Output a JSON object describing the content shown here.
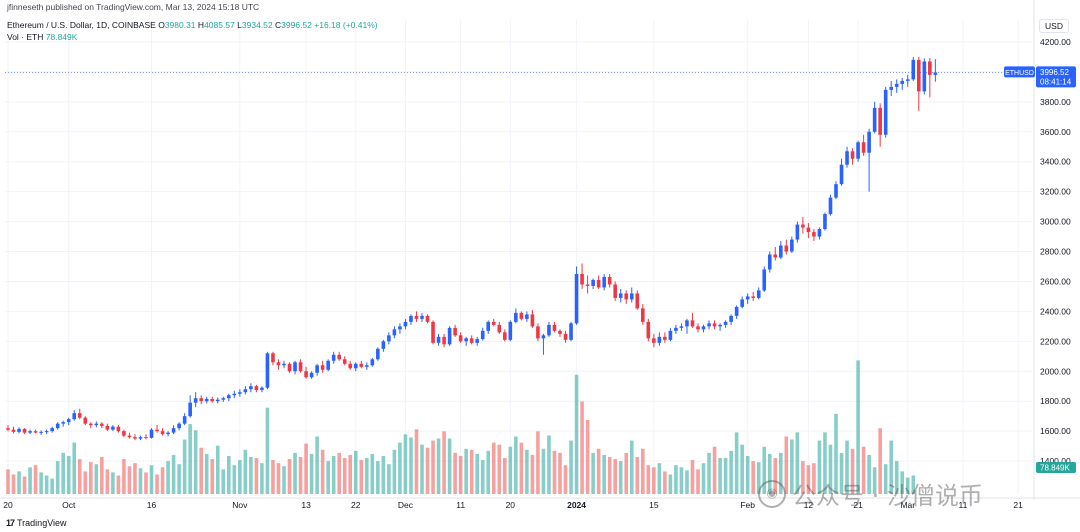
{
  "publisher": "jfinneseth published on TradingView.com, Mar 13, 2024 15:18 UTC",
  "legend": {
    "symbol": "Ethereum / U.S. Dollar, 1D, COINBASE",
    "o_label": "O",
    "o": "3980.31",
    "h_label": "H",
    "h": "4085.57",
    "l_label": "L",
    "l": "3934.52",
    "c_label": "C",
    "c": "3996.52",
    "change": "+16.18 (+0.41%)",
    "vol_label": "Vol · ETH",
    "vol": "78.849K"
  },
  "currency": "USD",
  "footer": "TradingView",
  "watermark": "公众号 · 沙僧说币",
  "colors": {
    "up": "#2962ff",
    "down": "#f23645",
    "vol_up": "#26a69a",
    "vol_down": "#ef5350"
  },
  "chart_data": {
    "type": "candlestick",
    "symbol_tag": "ETHUSD",
    "last_price": "3996.52",
    "countdown": "08:41:14",
    "volume_tag": "78.849K",
    "ylim": [
      1180,
      4280
    ],
    "y_ticks": [
      4200,
      4000,
      3800,
      3600,
      3400,
      3200,
      3000,
      2800,
      2600,
      2400,
      2200,
      2000,
      1800,
      1600,
      1400
    ],
    "y_tick_labels": [
      "4200.00",
      "4000.00",
      "3800.00",
      "3600.00",
      "3400.00",
      "3200.00",
      "3000.00",
      "2800.00",
      "2600.00",
      "2400.00",
      "2200.00",
      "2000.00",
      "1800.00",
      "1600.00",
      "1400.00"
    ],
    "x_ticks": [
      {
        "label": "20",
        "index": 0
      },
      {
        "label": "Oct",
        "index": 11
      },
      {
        "label": "16",
        "index": 26
      },
      {
        "label": "Nov",
        "index": 42
      },
      {
        "label": "13",
        "index": 54
      },
      {
        "label": "22",
        "index": 63
      },
      {
        "label": "Dec",
        "index": 72
      },
      {
        "label": "11",
        "index": 82
      },
      {
        "label": "20",
        "index": 91
      },
      {
        "label": "2024",
        "index": 103
      },
      {
        "label": "15",
        "index": 117
      },
      {
        "label": "Feb",
        "index": 134
      },
      {
        "label": "12",
        "index": 145
      },
      {
        "label": "21",
        "index": 154
      },
      {
        "label": "Mar",
        "index": 163
      },
      {
        "label": "11",
        "index": 173
      },
      {
        "label": "21",
        "index": 183
      }
    ],
    "ohlc": [
      [
        1620,
        1640,
        1600,
        1610
      ],
      [
        1610,
        1630,
        1585,
        1595
      ],
      [
        1595,
        1625,
        1585,
        1615
      ],
      [
        1615,
        1620,
        1580,
        1590
      ],
      [
        1590,
        1610,
        1580,
        1600
      ],
      [
        1600,
        1610,
        1585,
        1590
      ],
      [
        1590,
        1605,
        1575,
        1595
      ],
      [
        1595,
        1610,
        1580,
        1600
      ],
      [
        1600,
        1630,
        1590,
        1620
      ],
      [
        1620,
        1660,
        1610,
        1650
      ],
      [
        1650,
        1670,
        1630,
        1660
      ],
      [
        1660,
        1690,
        1640,
        1680
      ],
      [
        1680,
        1740,
        1670,
        1720
      ],
      [
        1720,
        1750,
        1680,
        1690
      ],
      [
        1690,
        1700,
        1640,
        1650
      ],
      [
        1650,
        1660,
        1620,
        1640
      ],
      [
        1640,
        1665,
        1625,
        1650
      ],
      [
        1650,
        1660,
        1620,
        1635
      ],
      [
        1635,
        1650,
        1600,
        1610
      ],
      [
        1610,
        1640,
        1600,
        1630
      ],
      [
        1630,
        1640,
        1590,
        1600
      ],
      [
        1600,
        1610,
        1560,
        1570
      ],
      [
        1570,
        1590,
        1550,
        1560
      ],
      [
        1560,
        1580,
        1540,
        1550
      ],
      [
        1550,
        1570,
        1540,
        1560
      ],
      [
        1560,
        1580,
        1545,
        1555
      ],
      [
        1555,
        1620,
        1550,
        1610
      ],
      [
        1610,
        1640,
        1590,
        1600
      ],
      [
        1600,
        1620,
        1570,
        1580
      ],
      [
        1580,
        1600,
        1565,
        1590
      ],
      [
        1590,
        1640,
        1580,
        1620
      ],
      [
        1620,
        1660,
        1605,
        1650
      ],
      [
        1650,
        1720,
        1640,
        1700
      ],
      [
        1700,
        1840,
        1690,
        1790
      ],
      [
        1790,
        1860,
        1760,
        1820
      ],
      [
        1820,
        1840,
        1780,
        1800
      ],
      [
        1800,
        1830,
        1785,
        1815
      ],
      [
        1815,
        1830,
        1790,
        1800
      ],
      [
        1800,
        1825,
        1785,
        1810
      ],
      [
        1810,
        1830,
        1795,
        1820
      ],
      [
        1820,
        1850,
        1800,
        1840
      ],
      [
        1840,
        1870,
        1820,
        1850
      ],
      [
        1850,
        1880,
        1830,
        1860
      ],
      [
        1860,
        1900,
        1845,
        1880
      ],
      [
        1880,
        1920,
        1860,
        1900
      ],
      [
        1900,
        1910,
        1860,
        1875
      ],
      [
        1875,
        1900,
        1860,
        1890
      ],
      [
        1890,
        2130,
        1880,
        2120
      ],
      [
        2120,
        2130,
        2040,
        2060
      ],
      [
        2060,
        2080,
        2010,
        2040
      ],
      [
        2040,
        2070,
        2020,
        2050
      ],
      [
        2050,
        2060,
        1990,
        2000
      ],
      [
        2000,
        2070,
        1980,
        2060
      ],
      [
        2060,
        2080,
        1990,
        2000
      ],
      [
        2000,
        2030,
        1950,
        1960
      ],
      [
        1960,
        2000,
        1950,
        1990
      ],
      [
        1990,
        2050,
        1970,
        2040
      ],
      [
        2040,
        2070,
        1990,
        2010
      ],
      [
        2010,
        2080,
        2000,
        2070
      ],
      [
        2070,
        2130,
        2050,
        2110
      ],
      [
        2110,
        2130,
        2070,
        2080
      ],
      [
        2080,
        2100,
        2040,
        2050
      ],
      [
        2050,
        2070,
        2010,
        2020
      ],
      [
        2020,
        2060,
        2000,
        2050
      ],
      [
        2050,
        2070,
        2020,
        2030
      ],
      [
        2030,
        2060,
        2010,
        2040
      ],
      [
        2040,
        2090,
        2030,
        2080
      ],
      [
        2080,
        2160,
        2070,
        2150
      ],
      [
        2150,
        2210,
        2130,
        2200
      ],
      [
        2200,
        2260,
        2180,
        2240
      ],
      [
        2240,
        2300,
        2220,
        2280
      ],
      [
        2280,
        2320,
        2250,
        2300
      ],
      [
        2300,
        2350,
        2280,
        2330
      ],
      [
        2330,
        2380,
        2310,
        2370
      ],
      [
        2370,
        2400,
        2330,
        2350
      ],
      [
        2350,
        2390,
        2330,
        2370
      ],
      [
        2370,
        2380,
        2320,
        2330
      ],
      [
        2330,
        2340,
        2180,
        2190
      ],
      [
        2190,
        2250,
        2170,
        2230
      ],
      [
        2230,
        2250,
        2160,
        2180
      ],
      [
        2180,
        2300,
        2170,
        2290
      ],
      [
        2290,
        2310,
        2230,
        2240
      ],
      [
        2240,
        2260,
        2190,
        2200
      ],
      [
        2200,
        2230,
        2170,
        2220
      ],
      [
        2220,
        2240,
        2180,
        2190
      ],
      [
        2190,
        2230,
        2170,
        2215
      ],
      [
        2215,
        2290,
        2205,
        2270
      ],
      [
        2270,
        2340,
        2250,
        2330
      ],
      [
        2330,
        2350,
        2300,
        2310
      ],
      [
        2310,
        2330,
        2250,
        2260
      ],
      [
        2260,
        2280,
        2200,
        2210
      ],
      [
        2210,
        2340,
        2200,
        2330
      ],
      [
        2330,
        2420,
        2320,
        2390
      ],
      [
        2390,
        2400,
        2340,
        2350
      ],
      [
        2350,
        2400,
        2330,
        2380
      ],
      [
        2380,
        2410,
        2290,
        2300
      ],
      [
        2300,
        2320,
        2200,
        2220
      ],
      [
        2220,
        2250,
        2110,
        2240
      ],
      [
        2240,
        2330,
        2230,
        2310
      ],
      [
        2310,
        2330,
        2260,
        2270
      ],
      [
        2270,
        2280,
        2230,
        2250
      ],
      [
        2250,
        2270,
        2190,
        2210
      ],
      [
        2210,
        2330,
        2200,
        2320
      ],
      [
        2320,
        2700,
        2310,
        2650
      ],
      [
        2650,
        2720,
        2550,
        2580
      ],
      [
        2580,
        2640,
        2520,
        2570
      ],
      [
        2570,
        2620,
        2550,
        2610
      ],
      [
        2610,
        2640,
        2550,
        2560
      ],
      [
        2560,
        2650,
        2540,
        2630
      ],
      [
        2630,
        2650,
        2560,
        2580
      ],
      [
        2580,
        2600,
        2470,
        2490
      ],
      [
        2490,
        2550,
        2460,
        2520
      ],
      [
        2520,
        2540,
        2450,
        2480
      ],
      [
        2480,
        2560,
        2460,
        2520
      ],
      [
        2520,
        2540,
        2410,
        2420
      ],
      [
        2420,
        2450,
        2310,
        2330
      ],
      [
        2330,
        2350,
        2200,
        2220
      ],
      [
        2220,
        2250,
        2160,
        2190
      ],
      [
        2190,
        2260,
        2170,
        2230
      ],
      [
        2230,
        2260,
        2190,
        2210
      ],
      [
        2210,
        2290,
        2200,
        2270
      ],
      [
        2270,
        2310,
        2250,
        2290
      ],
      [
        2290,
        2320,
        2270,
        2300
      ],
      [
        2300,
        2350,
        2250,
        2340
      ],
      [
        2340,
        2390,
        2290,
        2300
      ],
      [
        2300,
        2320,
        2260,
        2280
      ],
      [
        2280,
        2310,
        2260,
        2300
      ],
      [
        2300,
        2340,
        2280,
        2320
      ],
      [
        2320,
        2340,
        2280,
        2300
      ],
      [
        2300,
        2320,
        2270,
        2310
      ],
      [
        2310,
        2340,
        2290,
        2330
      ],
      [
        2330,
        2380,
        2310,
        2370
      ],
      [
        2370,
        2440,
        2350,
        2430
      ],
      [
        2430,
        2500,
        2420,
        2480
      ],
      [
        2480,
        2520,
        2450,
        2500
      ],
      [
        2500,
        2530,
        2470,
        2490
      ],
      [
        2490,
        2560,
        2480,
        2540
      ],
      [
        2540,
        2700,
        2530,
        2680
      ],
      [
        2680,
        2800,
        2660,
        2780
      ],
      [
        2780,
        2830,
        2740,
        2760
      ],
      [
        2760,
        2870,
        2750,
        2840
      ],
      [
        2840,
        2880,
        2780,
        2800
      ],
      [
        2800,
        2900,
        2790,
        2880
      ],
      [
        2880,
        3000,
        2860,
        2980
      ],
      [
        2980,
        3030,
        2920,
        2960
      ],
      [
        2960,
        2990,
        2890,
        2930
      ],
      [
        2930,
        2950,
        2870,
        2900
      ],
      [
        2900,
        2960,
        2880,
        2950
      ],
      [
        2950,
        3060,
        2940,
        3050
      ],
      [
        3050,
        3180,
        3040,
        3160
      ],
      [
        3160,
        3270,
        3150,
        3250
      ],
      [
        3250,
        3420,
        3240,
        3380
      ],
      [
        3380,
        3500,
        3360,
        3470
      ],
      [
        3470,
        3490,
        3380,
        3420
      ],
      [
        3420,
        3540,
        3400,
        3530
      ],
      [
        3530,
        3580,
        3440,
        3460
      ],
      [
        3460,
        3620,
        3200,
        3600
      ],
      [
        3600,
        3800,
        3590,
        3760
      ],
      [
        3760,
        3790,
        3500,
        3580
      ],
      [
        3580,
        3900,
        3560,
        3880
      ],
      [
        3880,
        3940,
        3840,
        3900
      ],
      [
        3900,
        3950,
        3860,
        3920
      ],
      [
        3920,
        3960,
        3880,
        3940
      ],
      [
        3940,
        3980,
        3900,
        3950
      ],
      [
        3950,
        4100,
        3940,
        4080
      ],
      [
        4080,
        4100,
        3740,
        3870
      ],
      [
        3870,
        4090,
        3850,
        4070
      ],
      [
        4070,
        4093,
        3830,
        3980
      ],
      [
        3980.31,
        4085.57,
        3934.52,
        3996.52
      ]
    ],
    "volume": [
      120,
      95,
      110,
      85,
      130,
      140,
      105,
      90,
      75,
      160,
      200,
      185,
      250,
      170,
      110,
      155,
      145,
      180,
      120,
      105,
      90,
      170,
      135,
      150,
      125,
      105,
      140,
      95,
      130,
      160,
      190,
      145,
      265,
      340,
      310,
      225,
      195,
      170,
      235,
      120,
      185,
      140,
      165,
      215,
      180,
      175,
      150,
      420,
      165,
      150,
      135,
      170,
      200,
      180,
      245,
      195,
      280,
      215,
      160,
      185,
      200,
      175,
      190,
      210,
      165,
      175,
      195,
      160,
      185,
      145,
      215,
      250,
      290,
      275,
      315,
      240,
      225,
      260,
      270,
      305,
      270,
      200,
      185,
      220,
      215,
      195,
      165,
      210,
      250,
      240,
      175,
      230,
      280,
      250,
      215,
      190,
      305,
      220,
      285,
      210,
      200,
      140,
      260,
      580,
      450,
      360,
      200,
      220,
      190,
      180,
      170,
      160,
      200,
      260,
      180,
      220,
      140,
      130,
      150,
      110,
      95,
      140,
      130,
      115,
      165,
      120,
      150,
      200,
      230,
      175,
      175,
      210,
      300,
      240,
      185,
      160,
      155,
      230,
      195,
      175,
      200,
      280,
      265,
      300,
      160,
      140,
      150,
      260,
      300,
      240,
      390,
      200,
      260,
      220,
      650,
      230,
      190,
      130,
      320,
      145,
      260,
      160,
      110,
      80,
      90
    ]
  }
}
